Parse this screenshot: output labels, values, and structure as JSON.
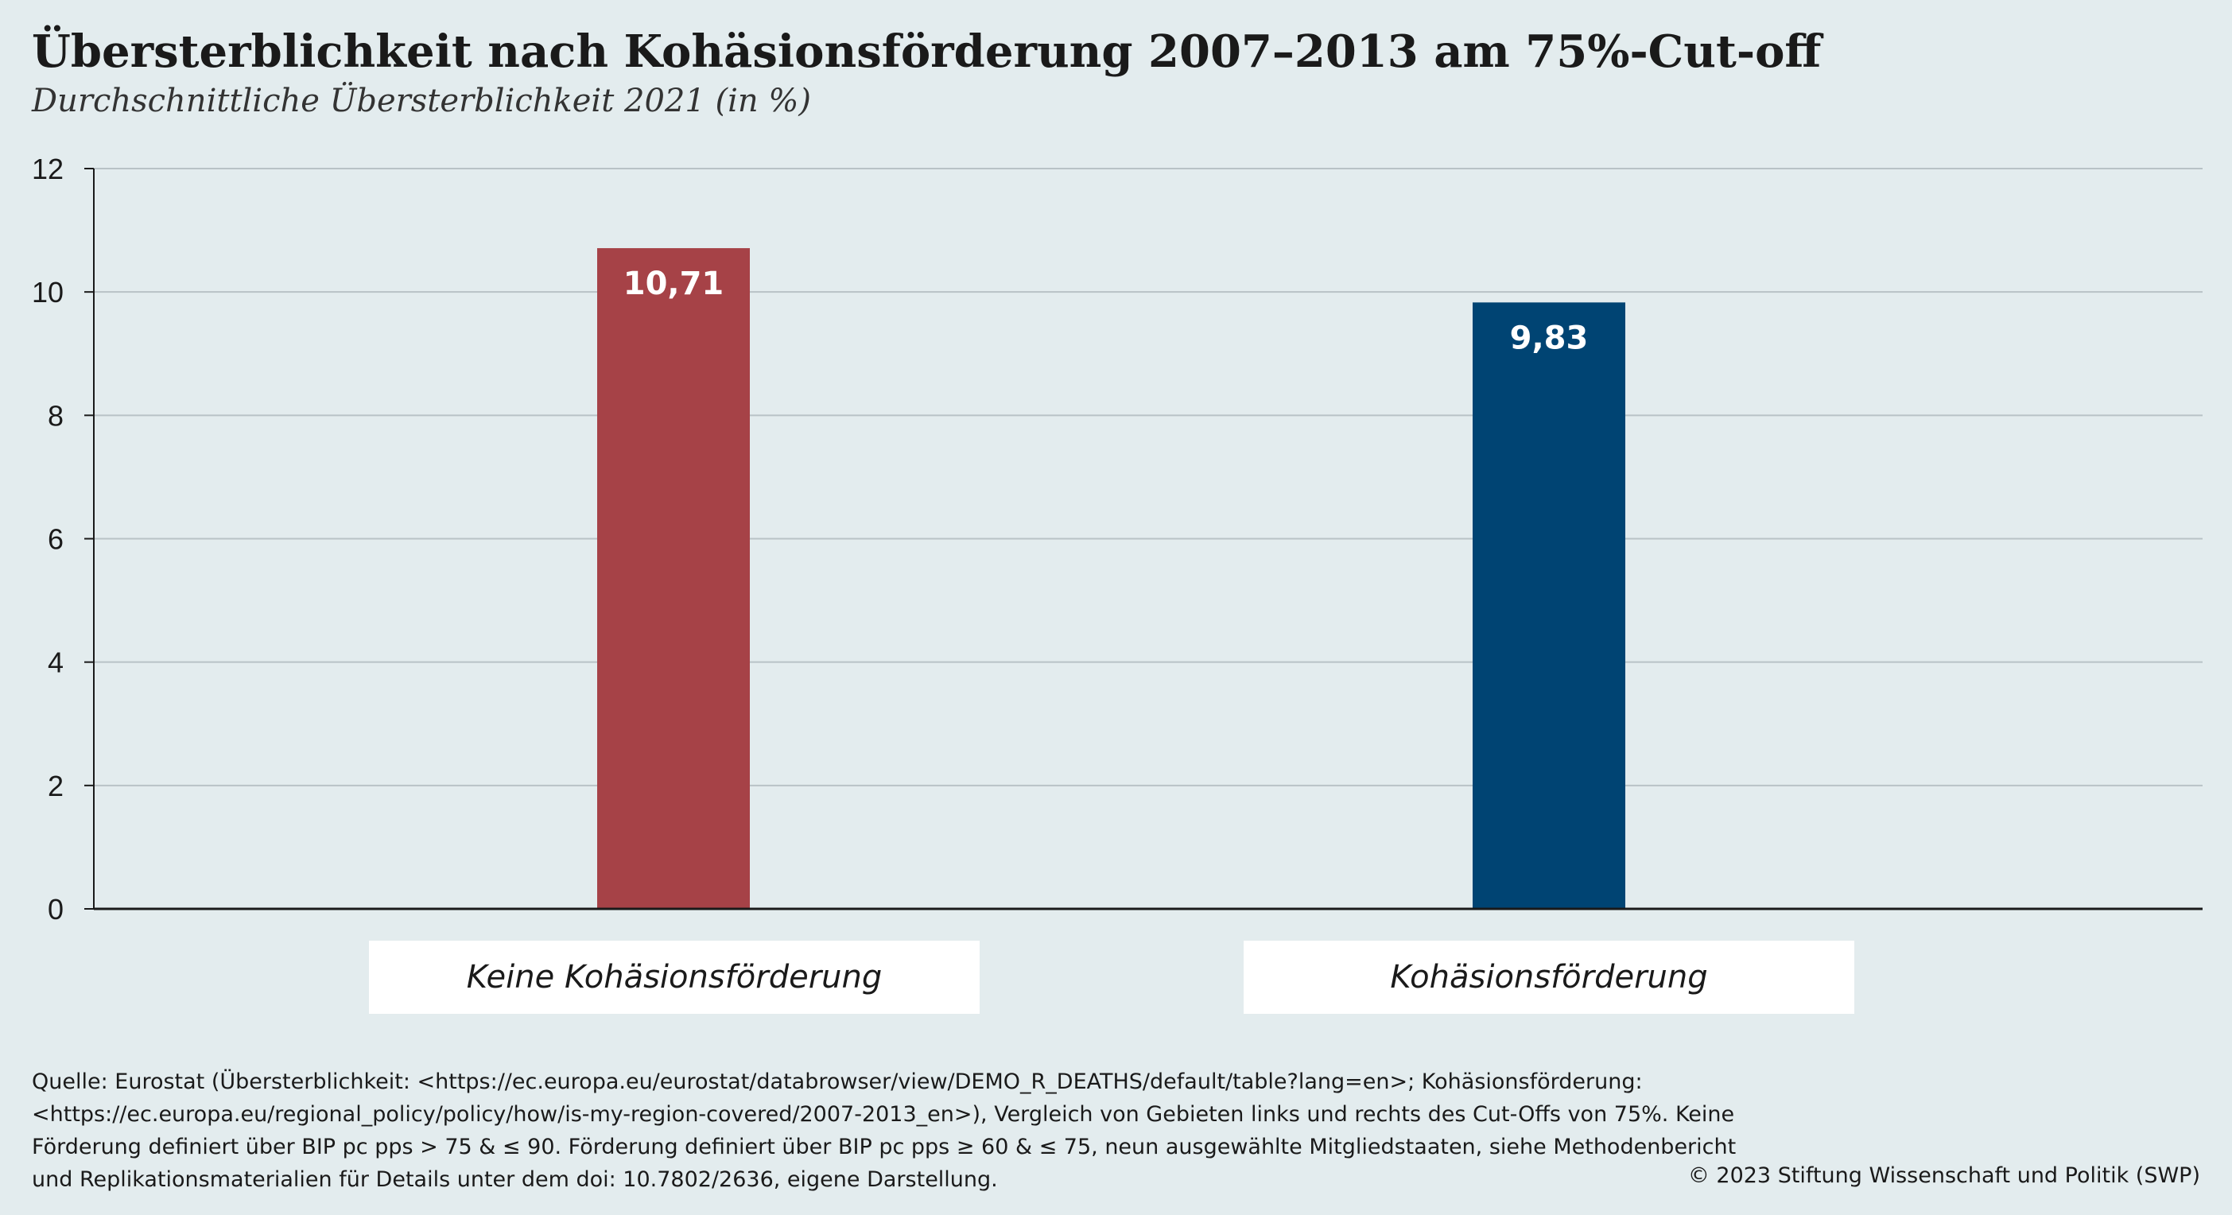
{
  "header": {
    "title": "Übersterblichkeit nach Kohäsionsförderung 2007–2013 am 75%-Cut-off",
    "subtitle": "Durchschnittliche Übersterblichkeit 2021 (in %)"
  },
  "chart_data": {
    "type": "bar",
    "title": "Übersterblichkeit nach Kohäsionsförderung 2007–2013 am 75%-Cut-off",
    "subtitle": "Durchschnittliche Übersterblichkeit 2021 (in %)",
    "categories": [
      "Keine Kohäsionsförderung",
      "Kohäsionsförderung"
    ],
    "values": [
      10.71,
      9.83
    ],
    "value_labels": [
      "10,71",
      "9,83"
    ],
    "bar_colors": [
      "#a64247",
      "#004473"
    ],
    "ylim": [
      0,
      12
    ],
    "yticks": [
      0,
      2,
      4,
      6,
      8,
      10,
      12
    ],
    "grid": true,
    "xlabel": "",
    "ylabel": ""
  },
  "footer": {
    "source": "Quelle: Eurostat (Übersterblichkeit: <https://ec.europa.eu/eurostat/databrowser/view/DEMO_R_DEATHS/default/table?lang=en>; Kohäsionsförderung: <https://ec.europa.eu/regional_policy/policy/how/is-my-region-covered/2007-2013_en>), Vergleich von Gebieten links und rechts des Cut-Offs von 75%. Keine Förderung definiert über BIP pc pps > 75 & ≤ 90. Förderung definiert über BIP pc pps ≥ 60 & ≤ 75, neun ausgewählte Mitgliedstaaten, siehe Methodenbericht und Replikationsmaterialien für Details unter dem doi: 10.7802/2636, eigene Darstellung.",
    "copyright": "© 2023 Stiftung Wissenschaft und Politik (SWP)"
  }
}
